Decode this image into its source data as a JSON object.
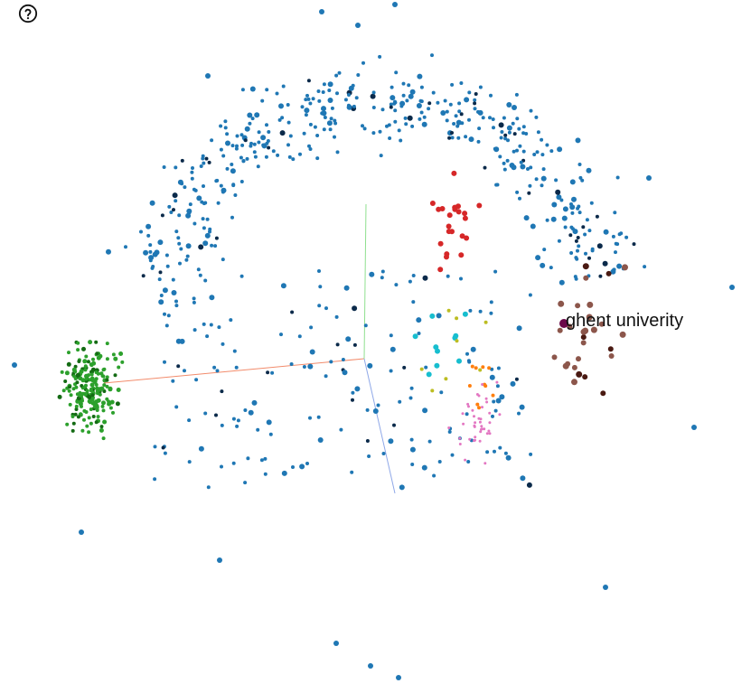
{
  "help": {
    "icon": "help-circle-icon"
  },
  "selection": {
    "label": "ghent univerity",
    "color": "#6b0a4a"
  },
  "axes": {
    "x_color": "#f28b6b",
    "y_color": "#8fe08f",
    "z_color": "#8fa8e8"
  },
  "palette": {
    "blue": "#1f77b4",
    "navy": "#0b2a4a",
    "green": "#2ca02c",
    "dark_green": "#146b14",
    "red": "#d62728",
    "brown": "#8c564b",
    "dark_brown": "#4a1a12",
    "cyan": "#17becf",
    "orange": "#ff7f0e",
    "olive": "#bcbd22",
    "pink": "#e377c2"
  }
}
